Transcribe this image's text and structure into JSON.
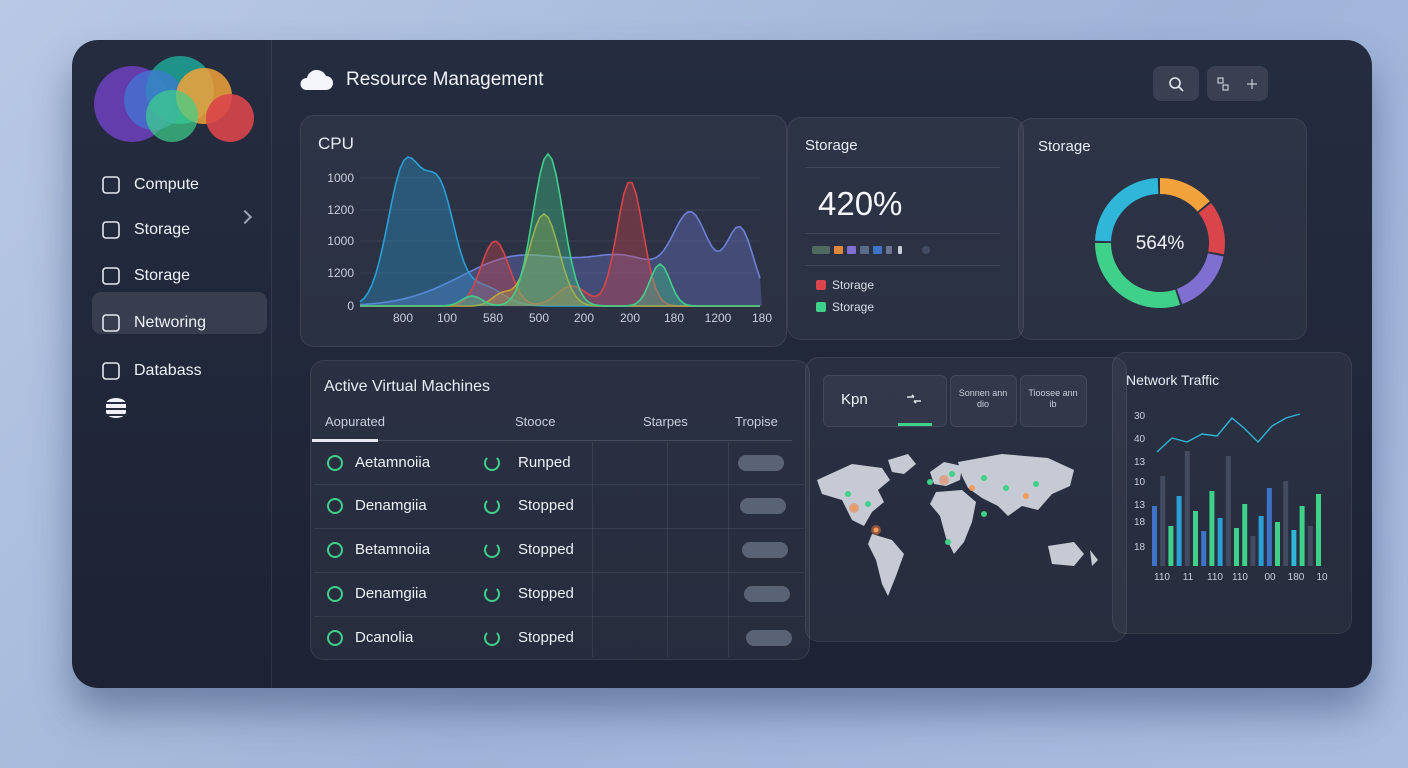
{
  "header": {
    "title": "Resource Management"
  },
  "sidebar": {
    "items": [
      "Compute",
      "Storage",
      "Storage",
      "Networing",
      "Databass"
    ]
  },
  "cpu": {
    "title": "CPU",
    "y_labels": [
      "1000",
      "1200",
      "1000",
      "1200",
      "0"
    ],
    "x_labels": [
      "800",
      "100",
      "580",
      "500",
      "200",
      "200",
      "180",
      "1200",
      "180"
    ]
  },
  "storage_stat": {
    "title": "Storage",
    "value": "420%",
    "legend": [
      "Storage",
      "Storage"
    ]
  },
  "storage_donut": {
    "title": "Storage",
    "value": "564%"
  },
  "vm_table": {
    "title": "Active Virtual Machines",
    "columns": [
      "Aopurated",
      "Stooce",
      "Starpes",
      "Tropise"
    ],
    "rows": [
      [
        "Aetamnoiia",
        "Runped"
      ],
      [
        "Denamgiia",
        "Stopped"
      ],
      [
        "Betamnoiia",
        "Stopped"
      ],
      [
        "Denamgiia",
        "Stopped"
      ],
      [
        "Dcanolia",
        "Stopped"
      ]
    ]
  },
  "map": {
    "tabs": [
      "Kpn",
      "Sonnen ann dio",
      "Tioosee ann ib"
    ]
  },
  "network": {
    "title": "Network Traffic",
    "y_labels": [
      "30",
      "40",
      "13",
      "10",
      "13",
      "18",
      "18"
    ],
    "x_labels": [
      "110",
      "11",
      "110",
      "110",
      "00",
      "180",
      "10"
    ]
  }
}
